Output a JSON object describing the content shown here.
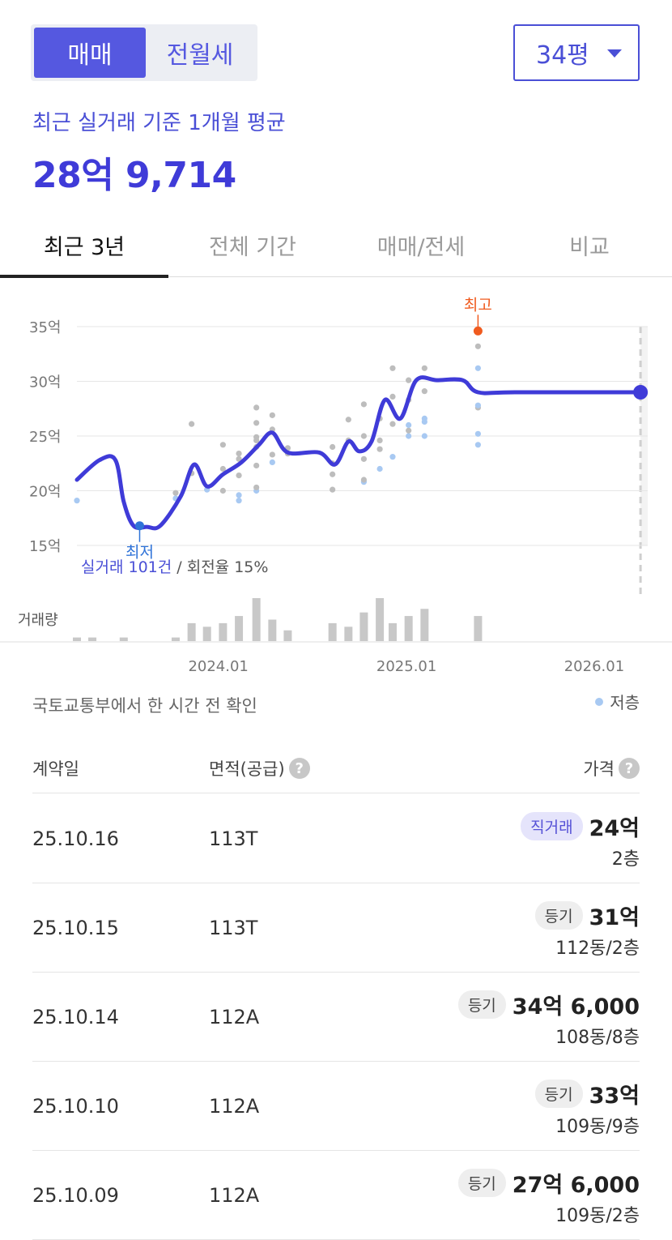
{
  "deal_type": {
    "sale": "매매",
    "rent": "전월세"
  },
  "area_select": {
    "value": "34평"
  },
  "average": {
    "label": "최근 실거래 기준 1개월 평균",
    "value": "28억 9,714"
  },
  "tabs": [
    "최근 3년",
    "전체 기간",
    "매매/전세",
    "비교"
  ],
  "summary": {
    "count": "실거래 101건",
    "turnover": " / 회전율 15%"
  },
  "source_note": "국토교통부에서 한 시간 전 확인",
  "legend_low_floor": "저층",
  "table": {
    "headers": {
      "date": "계약일",
      "area": "면적(공급)",
      "price": "가격"
    },
    "rows": [
      {
        "date": "25.10.16",
        "area": "113T",
        "badge": "직거래",
        "badge_type": "direct",
        "price": "24억",
        "floor": "2층"
      },
      {
        "date": "25.10.15",
        "area": "113T",
        "badge": "등기",
        "badge_type": "registered",
        "price": "31억",
        "floor": "112동/2층"
      },
      {
        "date": "25.10.14",
        "area": "112A",
        "badge": "등기",
        "badge_type": "registered",
        "price": "34억 6,000",
        "floor": "108동/8층"
      },
      {
        "date": "25.10.10",
        "area": "112A",
        "badge": "등기",
        "badge_type": "registered",
        "price": "33억",
        "floor": "109동/9층"
      },
      {
        "date": "25.10.09",
        "area": "112A",
        "badge": "등기",
        "badge_type": "registered",
        "price": "27억 6,000",
        "floor": "109동/2층"
      }
    ]
  },
  "chart_data": {
    "type": "line",
    "y_unit": "억",
    "ylim": [
      15,
      35
    ],
    "y_ticks": [
      15,
      20,
      25,
      30,
      35
    ],
    "y_tick_labels": [
      "15억",
      "20억",
      "25억",
      "30억",
      "35억"
    ],
    "x_range": [
      "2023-04-01",
      "2026-04-15"
    ],
    "x_ticks": [
      {
        "date": "2024-01-01",
        "label": "2024.01"
      },
      {
        "date": "2025-01-01",
        "label": "2025.01"
      },
      {
        "date": "2026-01-01",
        "label": "2026.01"
      }
    ],
    "forecast_start": "2026-04-01",
    "volume_label": "거래량",
    "colors": {
      "line": "#3f3bd8",
      "dot": "#bdbdbd",
      "dot_low_floor": "#a8c9f2",
      "max": "#f05b1f",
      "min": "#2f73d8",
      "volume": "#c8c8c8"
    },
    "average_line": [
      [
        "2023-04-01",
        21.0
      ],
      [
        "2023-05-15",
        22.8
      ],
      [
        "2023-06-15",
        22.8
      ],
      [
        "2023-07-01",
        19.0
      ],
      [
        "2023-07-20",
        16.8
      ],
      [
        "2023-08-15",
        16.7
      ],
      [
        "2023-09-10",
        16.8
      ],
      [
        "2023-10-20",
        19.5
      ],
      [
        "2023-11-15",
        22.4
      ],
      [
        "2023-12-10",
        20.4
      ],
      [
        "2024-01-10",
        21.5
      ],
      [
        "2024-02-15",
        22.6
      ],
      [
        "2024-03-20",
        24.2
      ],
      [
        "2024-04-15",
        25.3
      ],
      [
        "2024-05-15",
        23.5
      ],
      [
        "2024-07-15",
        23.5
      ],
      [
        "2024-08-15",
        22.4
      ],
      [
        "2024-09-10",
        24.5
      ],
      [
        "2024-10-01",
        23.6
      ],
      [
        "2024-10-25",
        24.5
      ],
      [
        "2024-11-20",
        28.3
      ],
      [
        "2024-12-20",
        26.6
      ],
      [
        "2025-01-20",
        30.1
      ],
      [
        "2025-03-01",
        30.1
      ],
      [
        "2025-04-20",
        30.1
      ],
      [
        "2025-05-20",
        29.0
      ],
      [
        "2025-08-01",
        29.0
      ],
      [
        "2026-04-01",
        29.0
      ]
    ],
    "max_point": {
      "date": "2025-05-20",
      "value": 34.6,
      "label": "최고"
    },
    "min_point": {
      "date": "2023-08-01",
      "value": 16.8,
      "label": "최저"
    },
    "current_point": {
      "date": "2026-04-01",
      "value": 29.0
    },
    "transactions": [
      [
        "2023-04-01",
        19.1,
        "low"
      ],
      [
        "2023-10-10",
        19.3,
        "low"
      ],
      [
        "2023-10-10",
        19.8,
        "mid"
      ],
      [
        "2023-11-10",
        21.6,
        "mid"
      ],
      [
        "2023-11-10",
        26.1,
        "mid"
      ],
      [
        "2023-12-10",
        20.1,
        "low"
      ],
      [
        "2024-01-10",
        20.0,
        "mid"
      ],
      [
        "2024-01-10",
        24.2,
        "mid"
      ],
      [
        "2024-01-10",
        22.0,
        "mid"
      ],
      [
        "2024-02-10",
        19.1,
        "low"
      ],
      [
        "2024-02-10",
        19.6,
        "low"
      ],
      [
        "2024-02-10",
        21.4,
        "mid"
      ],
      [
        "2024-02-10",
        22.9,
        "mid"
      ],
      [
        "2024-02-10",
        23.4,
        "mid"
      ],
      [
        "2024-03-15",
        20.0,
        "low"
      ],
      [
        "2024-03-15",
        20.3,
        "mid"
      ],
      [
        "2024-03-15",
        22.3,
        "mid"
      ],
      [
        "2024-03-15",
        24.0,
        "mid"
      ],
      [
        "2024-03-15",
        24.6,
        "mid"
      ],
      [
        "2024-03-15",
        24.9,
        "mid"
      ],
      [
        "2024-03-15",
        26.2,
        "mid"
      ],
      [
        "2024-03-15",
        27.6,
        "mid"
      ],
      [
        "2024-04-15",
        22.6,
        "low"
      ],
      [
        "2024-04-15",
        23.3,
        "mid"
      ],
      [
        "2024-04-15",
        25.6,
        "mid"
      ],
      [
        "2024-04-15",
        26.9,
        "mid"
      ],
      [
        "2024-05-15",
        23.4,
        "mid"
      ],
      [
        "2024-05-15",
        23.9,
        "mid"
      ],
      [
        "2024-08-10",
        20.1,
        "mid"
      ],
      [
        "2024-08-10",
        21.5,
        "mid"
      ],
      [
        "2024-08-10",
        22.5,
        "mid"
      ],
      [
        "2024-08-10",
        24.0,
        "mid"
      ],
      [
        "2024-09-10",
        24.6,
        "mid"
      ],
      [
        "2024-09-10",
        26.5,
        "mid"
      ],
      [
        "2024-10-10",
        20.8,
        "low"
      ],
      [
        "2024-10-10",
        21.0,
        "mid"
      ],
      [
        "2024-10-10",
        22.9,
        "mid"
      ],
      [
        "2024-10-10",
        25.0,
        "mid"
      ],
      [
        "2024-10-10",
        27.9,
        "mid"
      ],
      [
        "2024-11-10",
        22.0,
        "low"
      ],
      [
        "2024-11-10",
        23.8,
        "mid"
      ],
      [
        "2024-11-10",
        24.6,
        "mid"
      ],
      [
        "2024-11-10",
        26.6,
        "mid"
      ],
      [
        "2024-12-05",
        23.1,
        "low"
      ],
      [
        "2024-12-05",
        26.1,
        "mid"
      ],
      [
        "2024-12-05",
        28.6,
        "mid"
      ],
      [
        "2024-12-05",
        31.2,
        "mid"
      ],
      [
        "2025-01-05",
        25.0,
        "low"
      ],
      [
        "2025-01-05",
        25.5,
        "mid"
      ],
      [
        "2025-01-05",
        26.0,
        "low"
      ],
      [
        "2025-01-05",
        28.3,
        "mid"
      ],
      [
        "2025-01-05",
        30.1,
        "mid"
      ],
      [
        "2025-02-05",
        25.0,
        "low"
      ],
      [
        "2025-02-05",
        26.6,
        "low"
      ],
      [
        "2025-02-05",
        26.3,
        "low"
      ],
      [
        "2025-02-05",
        29.1,
        "mid"
      ],
      [
        "2025-02-05",
        31.2,
        "mid"
      ],
      [
        "2025-05-20",
        24.2,
        "low"
      ],
      [
        "2025-05-20",
        25.2,
        "low"
      ],
      [
        "2025-05-20",
        27.6,
        "mid"
      ],
      [
        "2025-05-20",
        27.8,
        "low"
      ],
      [
        "2025-05-20",
        31.2,
        "low"
      ],
      [
        "2025-05-20",
        33.2,
        "mid"
      ]
    ],
    "volume": [
      [
        "2023-04-01",
        1
      ],
      [
        "2023-05-01",
        1
      ],
      [
        "2023-07-01",
        1
      ],
      [
        "2023-10-10",
        1
      ],
      [
        "2023-11-10",
        5
      ],
      [
        "2023-12-10",
        4
      ],
      [
        "2024-01-10",
        5
      ],
      [
        "2024-02-10",
        7
      ],
      [
        "2024-03-15",
        12
      ],
      [
        "2024-04-15",
        6
      ],
      [
        "2024-05-15",
        3
      ],
      [
        "2024-08-10",
        5
      ],
      [
        "2024-09-10",
        4
      ],
      [
        "2024-10-10",
        8
      ],
      [
        "2024-11-10",
        12
      ],
      [
        "2024-12-05",
        5
      ],
      [
        "2025-01-05",
        7
      ],
      [
        "2025-02-05",
        9
      ],
      [
        "2025-05-20",
        7
      ]
    ],
    "volume_max": 12
  }
}
